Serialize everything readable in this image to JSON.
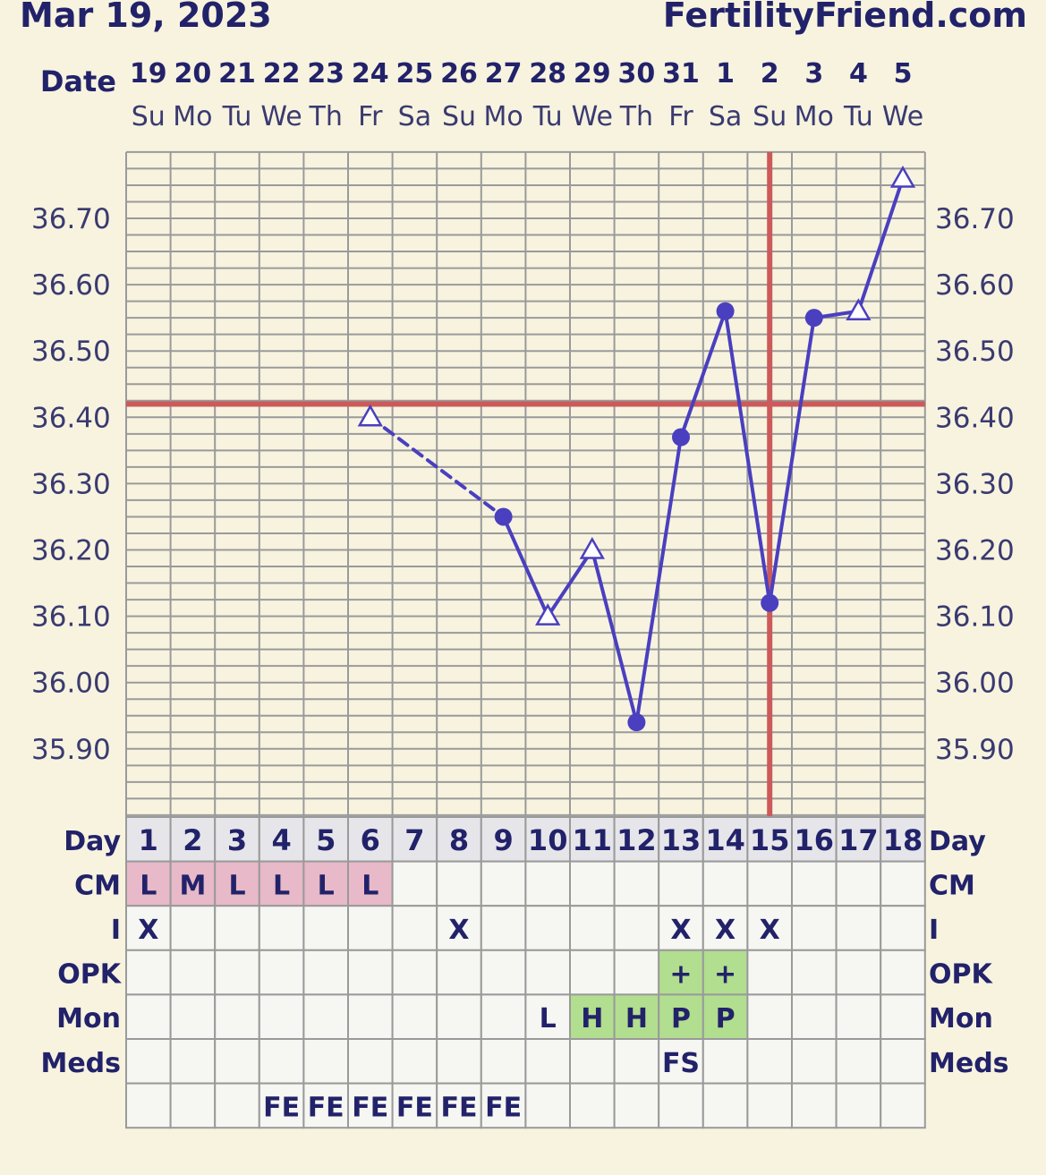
{
  "header": {
    "date": "Mar 19, 2023",
    "site": "FertilityFriend.com"
  },
  "colors": {
    "background": "#f7f3df",
    "line": "#4a3fbf",
    "coverline": "#cc5a5a",
    "grid": "#9a9a9a",
    "cm_fill": "#e8b9c8",
    "positive_fill": "#b2de8f",
    "table_fill": "#f6f6f2",
    "day_row_fill": "#e6e6ea"
  },
  "chart_data": {
    "type": "line",
    "title": "",
    "date_label": "Date",
    "dates": [
      "19",
      "20",
      "21",
      "22",
      "23",
      "24",
      "25",
      "26",
      "27",
      "28",
      "29",
      "30",
      "31",
      "1",
      "2",
      "3",
      "4",
      "5"
    ],
    "weekdays": [
      "Su",
      "Mo",
      "Tu",
      "We",
      "Th",
      "Fr",
      "Sa",
      "Su",
      "Mo",
      "Tu",
      "We",
      "Th",
      "Fr",
      "Sa",
      "Su",
      "Mo",
      "Tu",
      "We"
    ],
    "ylim": [
      35.79,
      36.8
    ],
    "yticks": [
      "36.70",
      "36.60",
      "36.50",
      "36.40",
      "36.30",
      "36.20",
      "36.10",
      "36.00",
      "35.90"
    ],
    "temperatures": [
      {
        "day": 6,
        "temp": 36.4,
        "marker": "triangle"
      },
      {
        "day": 9,
        "temp": 36.25,
        "marker": "circle"
      },
      {
        "day": 10,
        "temp": 36.1,
        "marker": "triangle"
      },
      {
        "day": 11,
        "temp": 36.2,
        "marker": "triangle"
      },
      {
        "day": 12,
        "temp": 35.94,
        "marker": "circle"
      },
      {
        "day": 13,
        "temp": 36.37,
        "marker": "circle"
      },
      {
        "day": 14,
        "temp": 36.56,
        "marker": "circle"
      },
      {
        "day": 15,
        "temp": 36.12,
        "marker": "circle"
      },
      {
        "day": 16,
        "temp": 36.55,
        "marker": "circle"
      },
      {
        "day": 17,
        "temp": 36.56,
        "marker": "triangle"
      },
      {
        "day": 18,
        "temp": 36.76,
        "marker": "triangle"
      }
    ],
    "dashed_segments": [
      [
        6,
        9
      ]
    ],
    "coverline": 36.42,
    "ovulation_day": 15
  },
  "table": {
    "day_label": "Day",
    "rows": [
      {
        "label": "CM",
        "highlight": "cm",
        "cells": [
          "L",
          "M",
          "L",
          "L",
          "L",
          "L",
          "",
          "",
          "",
          "",
          "",
          "",
          "",
          "",
          "",
          "",
          "",
          ""
        ],
        "hl": [
          1,
          1,
          1,
          1,
          1,
          1,
          0,
          0,
          0,
          0,
          0,
          0,
          0,
          0,
          0,
          0,
          0,
          0
        ]
      },
      {
        "label": "I",
        "highlight": "none",
        "cells": [
          "X",
          "",
          "",
          "",
          "",
          "",
          "",
          "X",
          "",
          "",
          "",
          "",
          "X",
          "X",
          "X",
          "",
          "",
          ""
        ],
        "hl": [
          0,
          0,
          0,
          0,
          0,
          0,
          0,
          0,
          0,
          0,
          0,
          0,
          0,
          0,
          0,
          0,
          0,
          0
        ]
      },
      {
        "label": "OPK",
        "highlight": "positive",
        "cells": [
          "",
          "",
          "",
          "",
          "",
          "",
          "",
          "",
          "",
          "",
          "",
          "",
          "+",
          "+",
          "",
          "",
          "",
          ""
        ],
        "hl": [
          0,
          0,
          0,
          0,
          0,
          0,
          0,
          0,
          0,
          0,
          0,
          0,
          1,
          1,
          0,
          0,
          0,
          0
        ]
      },
      {
        "label": "Mon",
        "highlight": "positive",
        "cells": [
          "",
          "",
          "",
          "",
          "",
          "",
          "",
          "",
          "",
          "L",
          "H",
          "H",
          "P",
          "P",
          "",
          "",
          "",
          ""
        ],
        "hl": [
          0,
          0,
          0,
          0,
          0,
          0,
          0,
          0,
          0,
          0,
          1,
          1,
          1,
          1,
          0,
          0,
          0,
          0
        ]
      },
      {
        "label": "Meds",
        "highlight": "none",
        "cells": [
          "",
          "",
          "",
          "",
          "",
          "",
          "",
          "",
          "",
          "",
          "",
          "",
          "FS",
          "",
          "",
          "",
          "",
          ""
        ],
        "hl": [
          0,
          0,
          0,
          0,
          0,
          0,
          0,
          0,
          0,
          0,
          0,
          0,
          0,
          0,
          0,
          0,
          0,
          0
        ]
      },
      {
        "label": "",
        "highlight": "none",
        "cells": [
          "",
          "",
          "",
          "FE",
          "FE",
          "FE",
          "FE",
          "FE",
          "FE",
          "",
          "",
          "",
          "",
          "",
          "",
          "",
          "",
          ""
        ],
        "hl": [
          0,
          0,
          0,
          0,
          0,
          0,
          0,
          0,
          0,
          0,
          0,
          0,
          0,
          0,
          0,
          0,
          0,
          0
        ]
      }
    ]
  }
}
